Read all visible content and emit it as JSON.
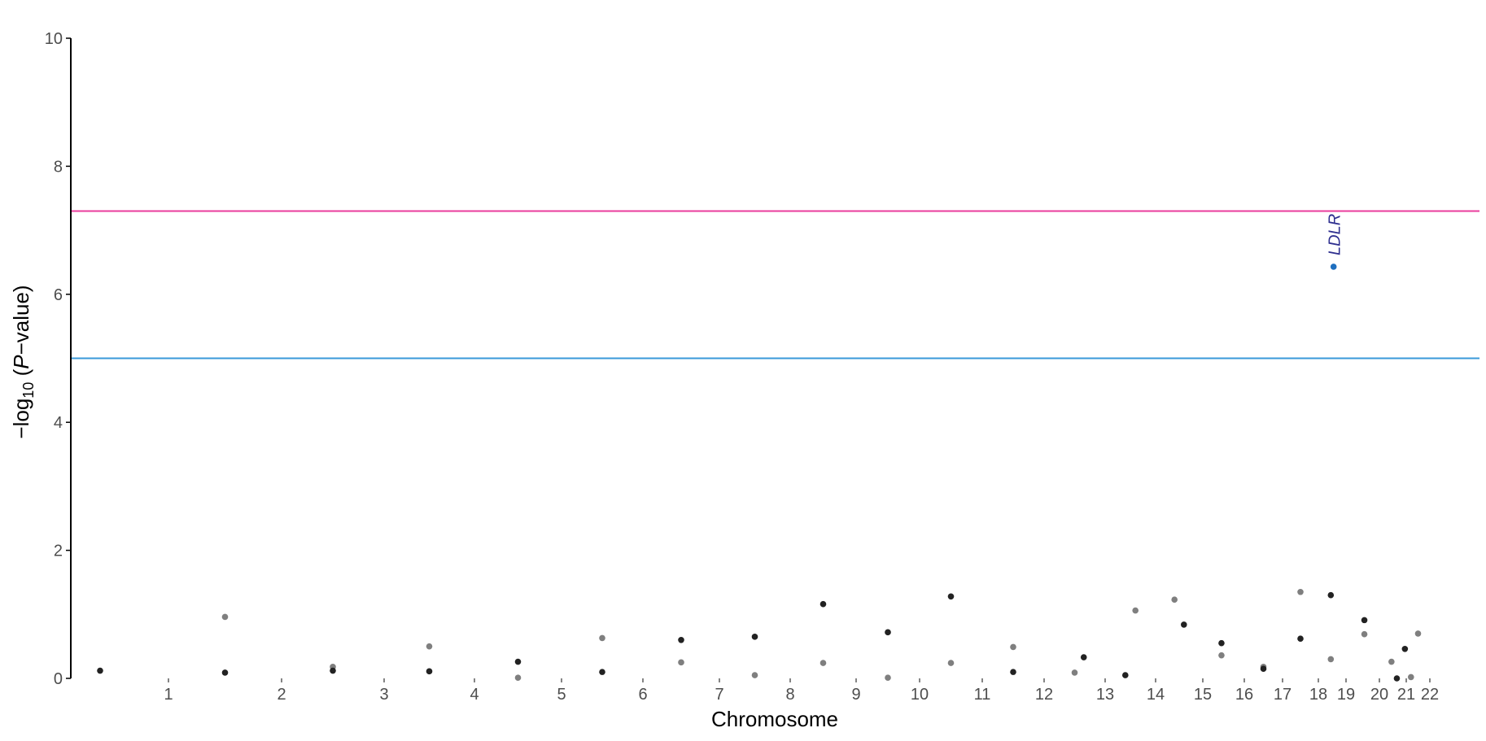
{
  "chart_data": {
    "type": "scatter",
    "title": "",
    "xlabel": "Chromosome",
    "ylabel": {
      "prefix": "−log",
      "sub": "10",
      "open": " (",
      "italic": "P",
      "rest": "−value)"
    },
    "ylim": [
      0,
      10
    ],
    "y_ticks": [
      "0",
      "2",
      "4",
      "6",
      "8",
      "10"
    ],
    "grid": false,
    "legend": "none",
    "chromosomes": [
      {
        "label": "1",
        "pos": 1.0
      },
      {
        "label": "2",
        "pos": 2.0
      },
      {
        "label": "3",
        "pos": 3.0
      },
      {
        "label": "4",
        "pos": 4.0
      },
      {
        "label": "5",
        "pos": 5.0
      },
      {
        "label": "6",
        "pos": 6.0
      },
      {
        "label": "7",
        "pos": 7.0
      },
      {
        "label": "8",
        "pos": 8.0
      },
      {
        "label": "9",
        "pos": 9.0
      },
      {
        "label": "10",
        "pos": 10.0
      },
      {
        "label": "11",
        "pos": 11.0
      },
      {
        "label": "12",
        "pos": 12.0
      },
      {
        "label": "13",
        "pos": 13.0
      },
      {
        "label": "14",
        "pos": 14.0
      },
      {
        "label": "15",
        "pos": 15.0
      },
      {
        "label": "16",
        "pos": 16.0
      },
      {
        "label": "17",
        "pos": 17.0
      },
      {
        "label": "18",
        "pos": 18.0
      },
      {
        "label": "19",
        "pos": 19.0
      },
      {
        "label": "20",
        "pos": 20.0
      },
      {
        "label": "21",
        "pos": 21.0
      },
      {
        "label": "22",
        "pos": 22.0
      }
    ],
    "thresholds": [
      {
        "value": 7.3,
        "color": "#E93D9C"
      },
      {
        "value": 5.0,
        "color": "#3A9AD9"
      }
    ],
    "colors": {
      "dark": "#222222",
      "light": "#7f7f7f",
      "highlight": "#1f6fbf",
      "annotation": "#2E2F8F",
      "axis": "#000000"
    },
    "points": [
      {
        "chr": 1,
        "x": 0.3,
        "y": 0.12,
        "c": "dark"
      },
      {
        "chr": 2,
        "x": 1.5,
        "y": 0.96,
        "c": "light"
      },
      {
        "chr": 2,
        "x": 1.5,
        "y": 0.09,
        "c": "dark"
      },
      {
        "chr": 3,
        "x": 2.5,
        "y": 0.18,
        "c": "light"
      },
      {
        "chr": 3,
        "x": 2.5,
        "y": 0.12,
        "c": "dark"
      },
      {
        "chr": 4,
        "x": 3.5,
        "y": 0.5,
        "c": "light"
      },
      {
        "chr": 4,
        "x": 3.5,
        "y": 0.11,
        "c": "dark"
      },
      {
        "chr": 5,
        "x": 4.5,
        "y": 0.26,
        "c": "dark"
      },
      {
        "chr": 5,
        "x": 4.5,
        "y": 0.01,
        "c": "light"
      },
      {
        "chr": 6,
        "x": 5.5,
        "y": 0.63,
        "c": "light"
      },
      {
        "chr": 6,
        "x": 5.5,
        "y": 0.1,
        "c": "dark"
      },
      {
        "chr": 7,
        "x": 6.5,
        "y": 0.6,
        "c": "dark"
      },
      {
        "chr": 7,
        "x": 6.5,
        "y": 0.25,
        "c": "light"
      },
      {
        "chr": 8,
        "x": 7.5,
        "y": 0.65,
        "c": "dark"
      },
      {
        "chr": 8,
        "x": 7.5,
        "y": 0.05,
        "c": "light"
      },
      {
        "chr": 9,
        "x": 8.5,
        "y": 1.16,
        "c": "dark"
      },
      {
        "chr": 9,
        "x": 8.5,
        "y": 0.24,
        "c": "light"
      },
      {
        "chr": 10,
        "x": 9.5,
        "y": 0.72,
        "c": "dark"
      },
      {
        "chr": 10,
        "x": 9.5,
        "y": 0.01,
        "c": "light"
      },
      {
        "chr": 11,
        "x": 10.5,
        "y": 1.28,
        "c": "dark"
      },
      {
        "chr": 11,
        "x": 10.5,
        "y": 0.24,
        "c": "light"
      },
      {
        "chr": 12,
        "x": 11.5,
        "y": 0.49,
        "c": "light"
      },
      {
        "chr": 12,
        "x": 11.5,
        "y": 0.1,
        "c": "dark"
      },
      {
        "chr": 13,
        "x": 12.5,
        "y": 0.09,
        "c": "light"
      },
      {
        "chr": 13,
        "x": 12.65,
        "y": 0.33,
        "c": "dark"
      },
      {
        "chr": 14,
        "x": 13.4,
        "y": 0.05,
        "c": "dark"
      },
      {
        "chr": 14,
        "x": 13.6,
        "y": 1.06,
        "c": "light"
      },
      {
        "chr": 15,
        "x": 14.4,
        "y": 1.23,
        "c": "light"
      },
      {
        "chr": 15,
        "x": 14.6,
        "y": 0.84,
        "c": "dark"
      },
      {
        "chr": 16,
        "x": 15.45,
        "y": 0.55,
        "c": "dark"
      },
      {
        "chr": 16,
        "x": 15.45,
        "y": 0.36,
        "c": "light"
      },
      {
        "chr": 17,
        "x": 16.5,
        "y": 0.18,
        "c": "light"
      },
      {
        "chr": 17,
        "x": 16.5,
        "y": 0.15,
        "c": "dark"
      },
      {
        "chr": 18,
        "x": 17.5,
        "y": 1.35,
        "c": "light"
      },
      {
        "chr": 18,
        "x": 17.5,
        "y": 0.62,
        "c": "dark"
      },
      {
        "chr": 19,
        "x": 18.45,
        "y": 1.3,
        "c": "dark"
      },
      {
        "chr": 19,
        "x": 18.45,
        "y": 0.3,
        "c": "light"
      },
      {
        "chr": 19,
        "x": 18.55,
        "y": 6.43,
        "c": "highlight",
        "label": "LDLR"
      },
      {
        "chr": 20,
        "x": 19.55,
        "y": 0.91,
        "c": "dark"
      },
      {
        "chr": 20,
        "x": 19.55,
        "y": 0.69,
        "c": "light"
      },
      {
        "chr": 21,
        "x": 20.45,
        "y": 0.26,
        "c": "light"
      },
      {
        "chr": 21,
        "x": 20.65,
        "y": 0.0,
        "c": "dark"
      },
      {
        "chr": 22,
        "x": 20.95,
        "y": 0.46,
        "c": "dark"
      },
      {
        "chr": 22,
        "x": 21.2,
        "y": 0.02,
        "c": "light"
      },
      {
        "chr": 22,
        "x": 21.5,
        "y": 0.7,
        "c": "light"
      }
    ]
  }
}
